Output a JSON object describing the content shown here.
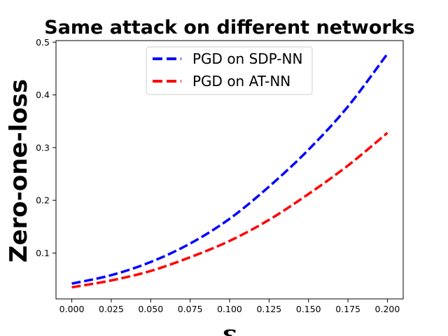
{
  "chart_data": {
    "type": "line",
    "title": "Same attack on different networks",
    "xlabel": "ε",
    "ylabel": "Zero-one-loss",
    "xlim": [
      -0.01,
      0.21
    ],
    "ylim": [
      0.013,
      0.503
    ],
    "x_ticks": [
      0.0,
      0.025,
      0.05,
      0.075,
      0.1,
      0.125,
      0.15,
      0.175,
      0.2
    ],
    "x_tick_labels": [
      "0.000",
      "0.025",
      "0.050",
      "0.075",
      "0.100",
      "0.125",
      "0.150",
      "0.175",
      "0.200"
    ],
    "y_ticks": [
      0.1,
      0.2,
      0.3,
      0.4,
      0.5
    ],
    "y_tick_labels": [
      "0.1",
      "0.2",
      "0.3",
      "0.4",
      "0.5"
    ],
    "grid": false,
    "legend_position": "top-center",
    "x": [
      0.0,
      0.025,
      0.05,
      0.075,
      0.1,
      0.125,
      0.15,
      0.175,
      0.2
    ],
    "series": [
      {
        "name": "PGD on SDP-NN",
        "color": "#0000ff",
        "style": "dashed",
        "values": [
          0.042,
          0.058,
          0.083,
          0.118,
          0.165,
          0.226,
          0.296,
          0.378,
          0.478
        ]
      },
      {
        "name": "PGD on AT-NN",
        "color": "#ff0000",
        "style": "dashed",
        "values": [
          0.035,
          0.048,
          0.066,
          0.092,
          0.123,
          0.163,
          0.212,
          0.266,
          0.328
        ]
      }
    ]
  }
}
